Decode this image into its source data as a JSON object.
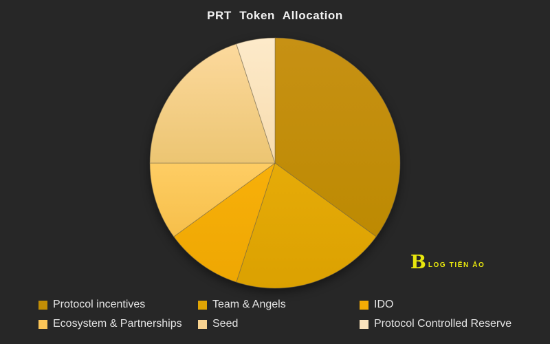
{
  "background_color": "#272727",
  "title": "PRT Token Allocation",
  "watermark": {
    "symbol": "B",
    "text": "LOG TIẾN ẢO",
    "color": "#e8e70e"
  },
  "chart_data": {
    "type": "pie",
    "title": "PRT Token Allocation",
    "unit": "percent",
    "direction": "clockwise",
    "start_angle": "12-o'clock",
    "legend_position": "bottom",
    "labels": [
      "Protocol incentives",
      "Team & Angels",
      "IDO",
      "Ecosystem & Partnerships",
      "Seed",
      "Protocol Controlled Reserve"
    ],
    "values": [
      35,
      20,
      10,
      10,
      20,
      5
    ],
    "colors": [
      {
        "top": "#c79114",
        "bottom": "#bd8a02",
        "legend": "#c18d06"
      },
      {
        "top": "#e6ab08",
        "bottom": "#dba101",
        "legend": "#e0a504"
      },
      {
        "top": "#f8b00a",
        "bottom": "#eea702",
        "legend": "#f4ab05"
      },
      {
        "top": "#fecd64",
        "bottom": "#f6bf4a",
        "legend": "#fac558"
      },
      {
        "top": "#fcd99d",
        "bottom": "#ecc572",
        "legend": "#f9d491"
      },
      {
        "top": "#fdeaca",
        "bottom": "#f7dcae",
        "legend": "#f9e3bd"
      }
    ]
  }
}
